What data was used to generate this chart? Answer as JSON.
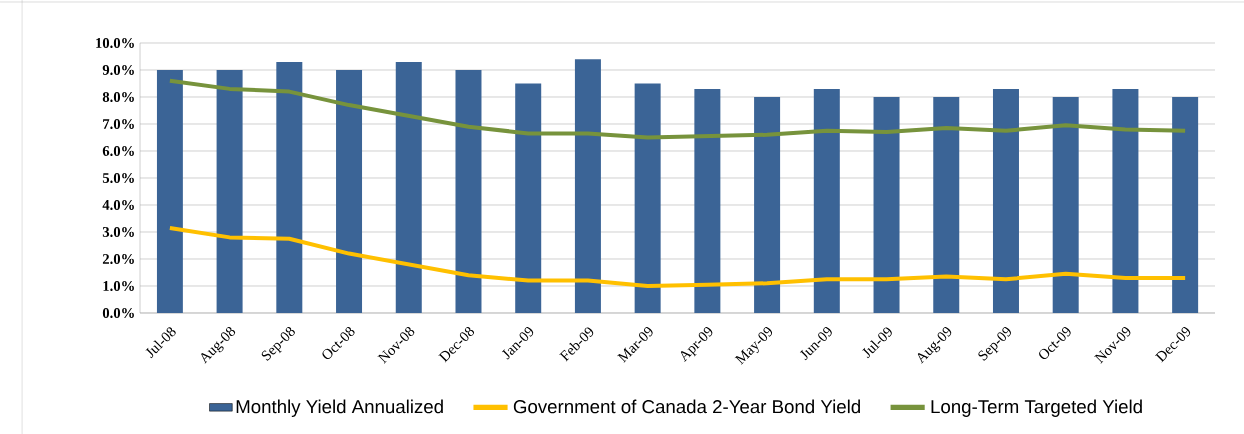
{
  "chart_data": {
    "type": "bar",
    "categories": [
      "Jul-08",
      "Aug-08",
      "Sep-08",
      "Oct-08",
      "Nov-08",
      "Dec-08",
      "Jan-09",
      "Feb-09",
      "Mar-09",
      "Apr-09",
      "May-09",
      "Jun-09",
      "Jul-09",
      "Aug-09",
      "Sep-09",
      "Oct-09",
      "Nov-09",
      "Dec-09"
    ],
    "series": [
      {
        "name": "Monthly Yield Annualized",
        "color": "#3b6496",
        "values": [
          9.0,
          9.0,
          9.3,
          9.0,
          9.3,
          9.0,
          8.5,
          9.4,
          8.5,
          8.3,
          8.0,
          8.3,
          8.0,
          8.0,
          8.3,
          8.0,
          8.3,
          8.0
        ]
      },
      {
        "name": "Government of Canada 2-Year Bond Yield",
        "type": "line",
        "color": "#ffc000",
        "values": [
          3.15,
          2.8,
          2.75,
          2.2,
          1.8,
          1.4,
          1.2,
          1.2,
          1.0,
          1.05,
          1.1,
          1.25,
          1.25,
          1.35,
          1.25,
          1.45,
          1.3,
          1.3
        ]
      },
      {
        "name": "Long-Term Targeted Yield",
        "type": "line",
        "color": "#77933c",
        "values": [
          8.6,
          8.3,
          8.2,
          7.7,
          7.3,
          6.9,
          6.65,
          6.65,
          6.5,
          6.55,
          6.6,
          6.75,
          6.7,
          6.85,
          6.75,
          6.95,
          6.8,
          6.75
        ]
      }
    ],
    "ylim": [
      0,
      10
    ],
    "yticks": [
      {
        "value": 0,
        "label": "0.0%"
      },
      {
        "value": 1,
        "label": "1.0%"
      },
      {
        "value": 2,
        "label": "2.0%"
      },
      {
        "value": 3,
        "label": "3.0%"
      },
      {
        "value": 4,
        "label": "4.0%"
      },
      {
        "value": 5,
        "label": "5.0%"
      },
      {
        "value": 6,
        "label": "6.0%"
      },
      {
        "value": 7,
        "label": "7.0%"
      },
      {
        "value": 8,
        "label": "8.0%"
      },
      {
        "value": 9,
        "label": "9.0%"
      },
      {
        "value": 10,
        "label": "10.0%"
      }
    ],
    "grid": "y",
    "legend": "bottom",
    "marker": "none",
    "line_style": "solid"
  }
}
